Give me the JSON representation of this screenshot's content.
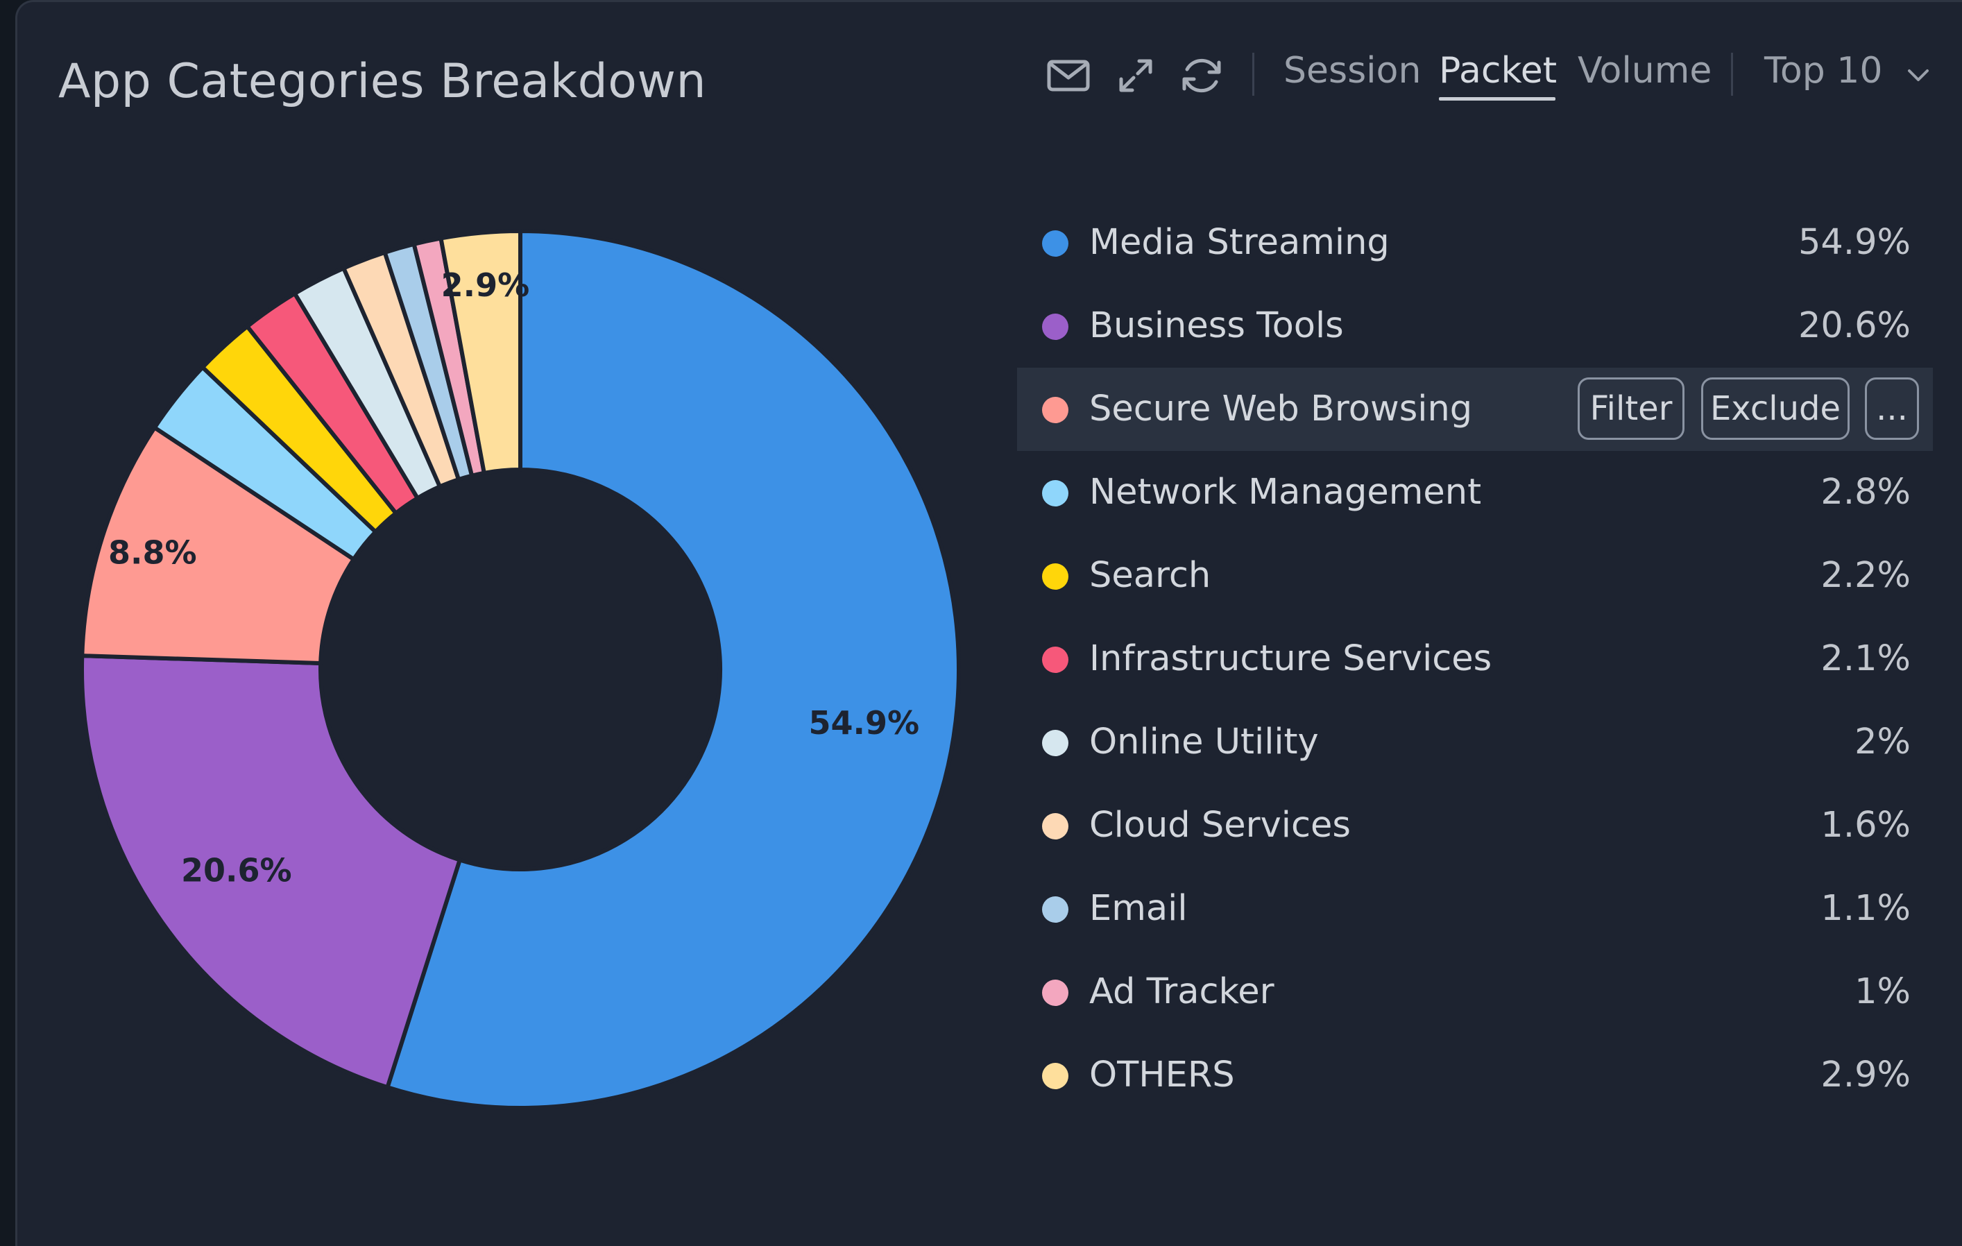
{
  "widget": {
    "title": "App Categories Breakdown",
    "tabs": [
      {
        "label": "Session",
        "active": false
      },
      {
        "label": "Packet",
        "active": true
      },
      {
        "label": "Volume",
        "active": false
      }
    ],
    "top_select": "Top 10",
    "icons": [
      "mail-icon",
      "expand-icon",
      "refresh-icon",
      "chevron-down-icon"
    ]
  },
  "legend": {
    "hover_actions": {
      "filter": "Filter",
      "exclude": "Exclude",
      "more": "..."
    }
  },
  "chart_data": {
    "type": "pie",
    "variant": "donut",
    "title": "App Categories Breakdown",
    "categories": [
      "Media Streaming",
      "Business Tools",
      "Secure Web Browsing",
      "Network Management",
      "Search",
      "Infrastructure Services",
      "Online Utility",
      "Cloud Services",
      "Email",
      "Ad Tracker",
      "OTHERS"
    ],
    "values": [
      54.9,
      20.6,
      8.8,
      2.8,
      2.2,
      2.1,
      2,
      1.6,
      1.1,
      1,
      2.9
    ],
    "value_labels": [
      "54.9%",
      "20.6%",
      "8.8%",
      "2.8%",
      "2.2%",
      "2.1%",
      "2%",
      "1.6%",
      "1.1%",
      "1%",
      "2.9%"
    ],
    "colors": [
      "#3d91e6",
      "#9b5fc9",
      "#fe9a92",
      "#8fd6fb",
      "#ffd60a",
      "#f6587a",
      "#d6e7ef",
      "#fdd9b5",
      "#a9cdea",
      "#f3a7bf",
      "#fedf9c"
    ],
    "slice_labels_shown": [
      "54.9%",
      "20.6%",
      "8.8%",
      "2.9%"
    ],
    "legend_position": "right",
    "hovered_category": "Secure Web Browsing"
  }
}
